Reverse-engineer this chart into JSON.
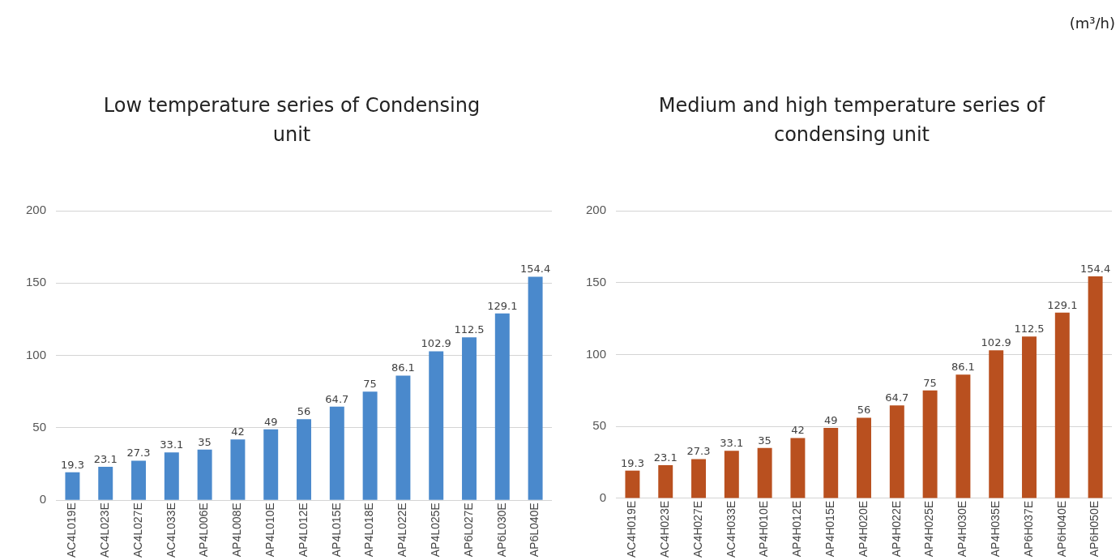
{
  "chart_data": [
    {
      "type": "bar",
      "title": "Low temperature series of Condensing unit",
      "categories": [
        "AC4L019E",
        "AC4L023E",
        "AC4L027E",
        "AC4L033E",
        "AP4L006E",
        "AP4L008E",
        "AP4L010E",
        "AP4L012E",
        "AP4L015E",
        "AP4L018E",
        "AP4L022E",
        "AP4L025E",
        "AP6L027E",
        "AP6L030E",
        "AP6L040E"
      ],
      "values": [
        19.3,
        23.1,
        27.3,
        33.1,
        35,
        42,
        49,
        56,
        64.7,
        75,
        86.1,
        102.9,
        112.5,
        129.1,
        154.4
      ],
      "color": "#4a89cc",
      "ylim": [
        0,
        200
      ],
      "yticks": [
        0,
        50,
        100,
        150,
        200
      ],
      "grid": "y",
      "data_labels": true
    },
    {
      "type": "bar",
      "title": "Medium and high temperature series of condensing unit",
      "categories": [
        "AC4H019E",
        "AC4H023E",
        "AC4H027E",
        "AC4H033E",
        "AP4H010E",
        "AP4H012E",
        "AP4H015E",
        "AP4H020E",
        "AP4H022E",
        "AP4H025E",
        "AP4H030E",
        "AP4H035E",
        "AP6H037E",
        "AP6H040E",
        "AP6H050E"
      ],
      "values": [
        19.3,
        23.1,
        27.3,
        33.1,
        35,
        42,
        49,
        56,
        64.7,
        75,
        86.1,
        102.9,
        112.5,
        129.1,
        154.4
      ],
      "color": "#b9501f",
      "ylim": [
        0,
        200
      ],
      "yticks": [
        0,
        50,
        100,
        150,
        200
      ],
      "grid": "y",
      "data_labels": true,
      "annotations": [
        "(m³/h)"
      ]
    }
  ]
}
